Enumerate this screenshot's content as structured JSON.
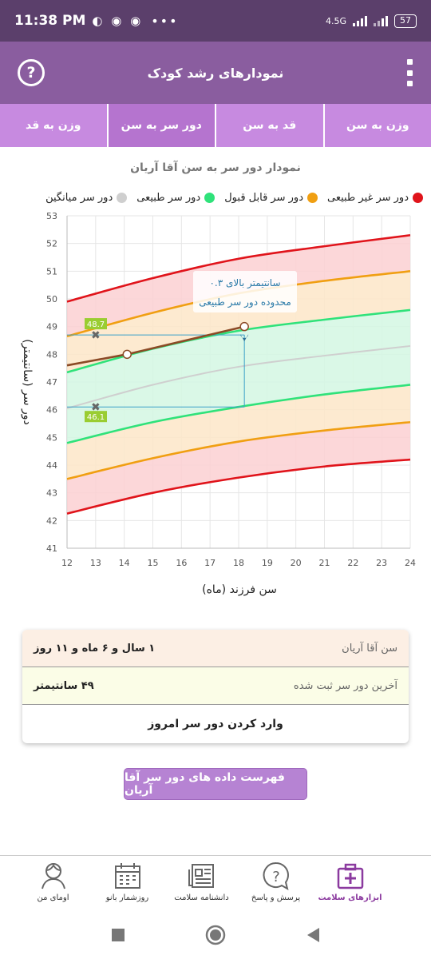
{
  "status_bar": {
    "time": "11:38 PM",
    "network": "4.5G",
    "battery": "57"
  },
  "app_bar": {
    "title": "نمودارهای رشد کودک"
  },
  "tabs": [
    {
      "label": "وزن به سن",
      "active": false
    },
    {
      "label": "قد به سن",
      "active": false
    },
    {
      "label": "دور سر به سن",
      "active": true
    },
    {
      "label": "وزن به قد",
      "active": false
    }
  ],
  "chart_title": "نمودار دور سر به سن آقا آریان",
  "legend": [
    {
      "label": "دور سر غیر طبیعی",
      "color": "#e0141b"
    },
    {
      "label": "دور سر قابل قبول",
      "color": "#f09f12"
    },
    {
      "label": "دور سر طبیعی",
      "color": "#2fe27a"
    },
    {
      "label": "دور سر میانگین",
      "color": "#cfcfcf"
    }
  ],
  "chart_data": {
    "type": "line",
    "xlabel": "سن فرزند (ماه)",
    "ylabel": "دور سر (سانتیمتر)",
    "xlim": [
      12,
      24
    ],
    "ylim": [
      41,
      53
    ],
    "x_ticks": [
      "12",
      "13",
      "14",
      "15",
      "16",
      "17",
      "18",
      "19",
      "20",
      "21",
      "22",
      "23",
      "24"
    ],
    "y_ticks": [
      "41",
      "42",
      "43",
      "44",
      "45",
      "46",
      "47",
      "48",
      "49",
      "50",
      "51",
      "52",
      "53"
    ],
    "curve_x": [
      12,
      15,
      18,
      21,
      24
    ],
    "bands": [
      {
        "name": "upper-abnormal",
        "values": [
          49.9,
          50.75,
          51.45,
          51.9,
          52.3
        ],
        "color": "#e0141b"
      },
      {
        "name": "upper-acceptable",
        "values": [
          48.65,
          49.5,
          50.2,
          50.65,
          51.0
        ],
        "color": "#f09f12"
      },
      {
        "name": "upper-normal",
        "values": [
          47.35,
          48.2,
          48.85,
          49.25,
          49.6
        ],
        "color": "#2fe27a"
      },
      {
        "name": "median",
        "values": [
          46.05,
          46.9,
          47.55,
          47.95,
          48.3
        ],
        "color": "#cfcfcf"
      },
      {
        "name": "lower-normal",
        "values": [
          44.8,
          45.55,
          46.1,
          46.55,
          46.9
        ],
        "color": "#2fe27a"
      },
      {
        "name": "lower-acceptable",
        "values": [
          43.5,
          44.25,
          44.85,
          45.25,
          45.55
        ],
        "color": "#f09f12"
      },
      {
        "name": "lower-abnormal",
        "values": [
          42.25,
          43.0,
          43.55,
          43.95,
          44.2
        ],
        "color": "#e0141b"
      }
    ],
    "child_series": {
      "x": [
        12,
        14.1,
        18.2
      ],
      "y": [
        47.6,
        48.0,
        49.0
      ],
      "color": "#8b4a26"
    },
    "crosshair": {
      "x": 18.2,
      "y_top": 48.7,
      "y_bottom": 46.1,
      "marker_x": 13,
      "label_top": "48.7",
      "label_bottom": "46.1"
    },
    "annotation": {
      "line1": "۰.۳ سانتیمتر بالای",
      "line2": "محدوده دور سر طبیعی"
    }
  },
  "info": {
    "age_label": "سن آقا آریان",
    "age_value": "۱ سال و ۶ ماه و ۱۱ روز",
    "last_label": "آخرین دور سر ثبت شده",
    "last_value": "۴۹ سانتیمتر",
    "enter_label": "وارد کردن دور سر امروز"
  },
  "list_button": "فهرست داده های دور سر آقا آریان",
  "bottom_nav": [
    {
      "label": "ابزارهای سلامت",
      "active": true
    },
    {
      "label": "پرسش و پاسخ",
      "active": false
    },
    {
      "label": "دانشنامه سلامت",
      "active": false
    },
    {
      "label": "روزشمار بانو",
      "active": false
    },
    {
      "label": "اومای من",
      "active": false
    }
  ]
}
